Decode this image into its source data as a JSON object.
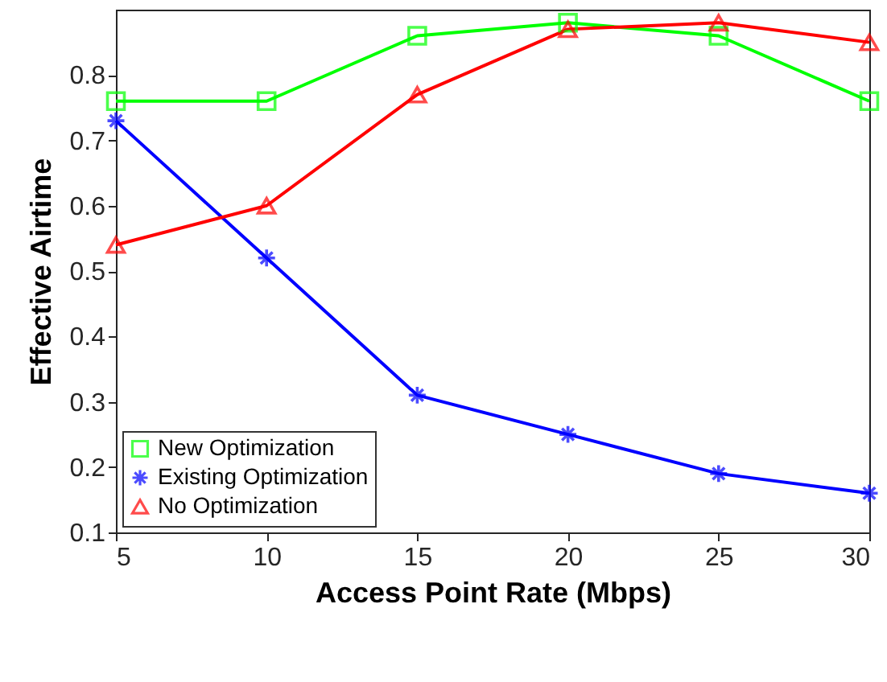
{
  "chart_data": {
    "type": "line",
    "xlabel": "Access Point Rate (Mbps)",
    "ylabel": "Effective Airtime",
    "x": [
      5,
      10,
      15,
      20,
      25,
      30
    ],
    "xlim": [
      5,
      30
    ],
    "xticks": [
      5,
      10,
      15,
      20,
      25,
      30
    ],
    "ylim": [
      0.1,
      0.9
    ],
    "yticks": [
      0.1,
      0.2,
      0.3,
      0.4,
      0.5,
      0.6,
      0.7,
      0.8
    ],
    "grid": false,
    "legend": "bottom left",
    "line_style": "solid",
    "series": [
      {
        "name": "New Optimization",
        "color": "#00ff00",
        "marker": "square",
        "values": [
          0.76,
          0.76,
          0.86,
          0.88,
          0.86,
          0.76
        ]
      },
      {
        "name": "Existing Optimization",
        "color": "#0000ff",
        "marker": "cross",
        "values": [
          0.73,
          0.52,
          0.31,
          0.25,
          0.19,
          0.16
        ]
      },
      {
        "name": "No Optimization",
        "color": "#ff0000",
        "marker": "triangle",
        "values": [
          0.54,
          0.6,
          0.77,
          0.87,
          0.88,
          0.85
        ]
      }
    ]
  }
}
